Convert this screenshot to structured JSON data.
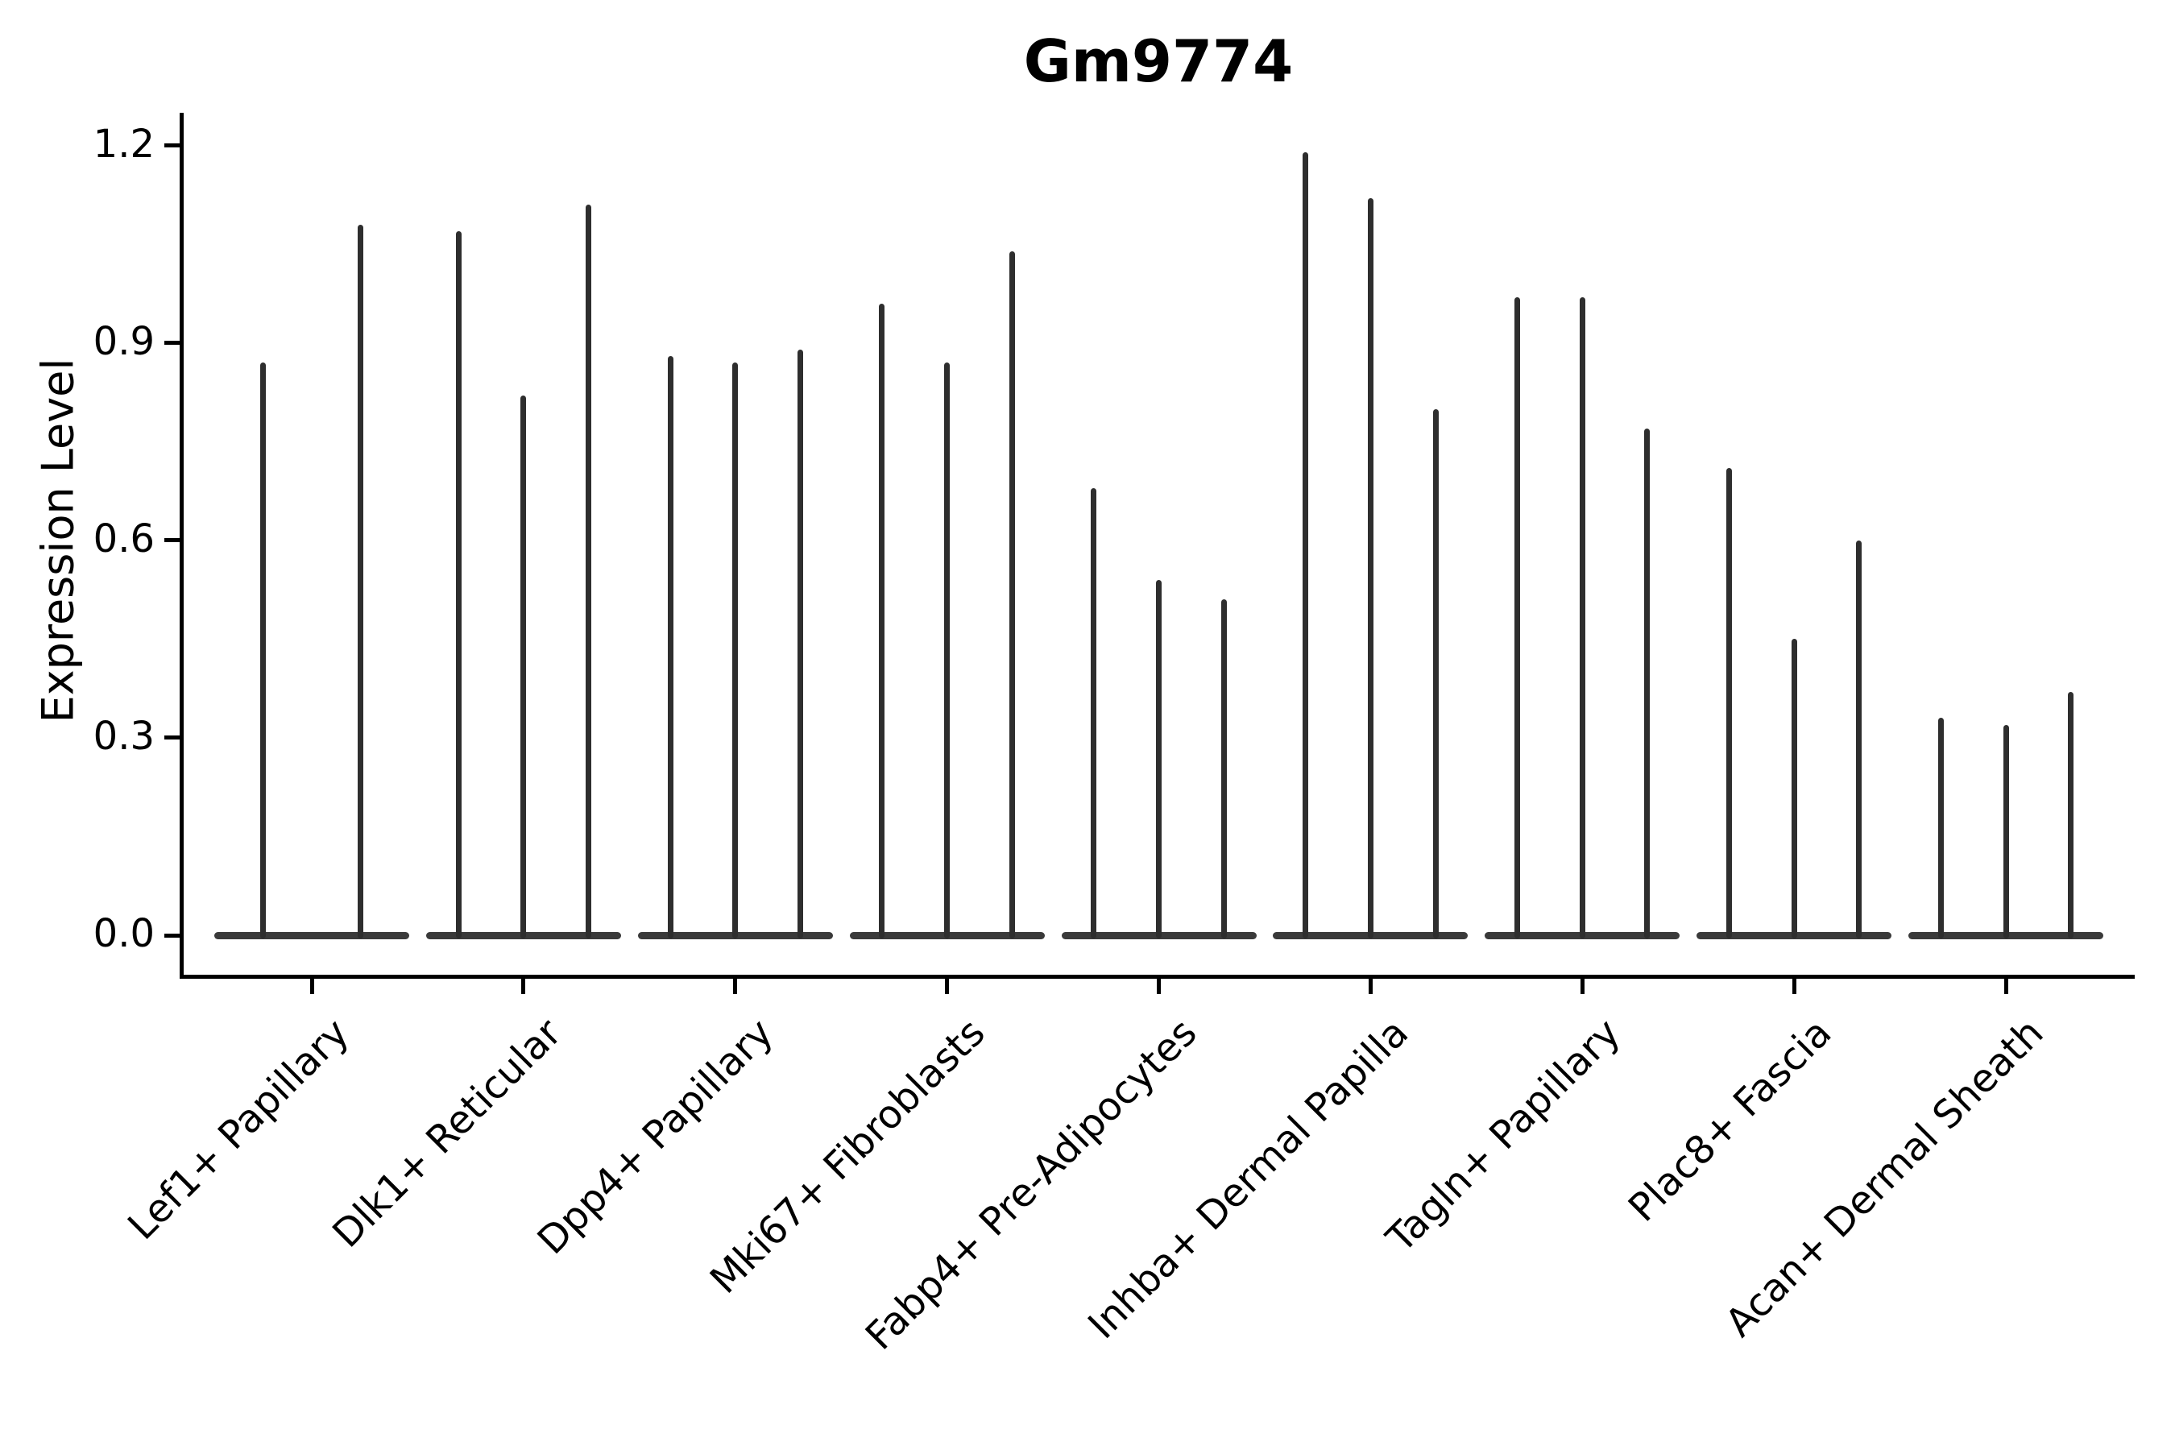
{
  "title": "Gm9774",
  "y_axis": {
    "label": "Expression Level",
    "tick_labels": [
      "0.0",
      "0.3",
      "0.6",
      "0.9",
      "1.2"
    ]
  },
  "x_axis": {
    "tick_labels": [
      "Lef1+ Papillary",
      "Dlk1+ Reticular",
      "Dpp4+ Papillary",
      "Mki67+ Fibroblasts",
      "Fabp4+ Pre-Adipocytes",
      "Inhba+ Dermal Papilla",
      "Tagln+ Papillary",
      "Plac8+ Fascia",
      "Acan+ Dermal Sheath"
    ]
  },
  "colors": {
    "violin": "#2e2e2e",
    "violin_base": "#3a3a3a",
    "axis": "#000000",
    "text": "#000000",
    "background": "#ffffff"
  },
  "chart_data": {
    "type": "violin",
    "title": "Gm9774",
    "xlabel": "",
    "ylabel": "Expression Level",
    "ylim": [
      -0.06,
      1.25
    ],
    "yticks": [
      0.0,
      0.3,
      0.6,
      0.9,
      1.2
    ],
    "grid": false,
    "legend_position": "none",
    "categories": [
      "Lef1+ Papillary",
      "Dlk1+ Reticular",
      "Dpp4+ Papillary",
      "Mki67+ Fibroblasts",
      "Fabp4+ Pre-Adipocytes",
      "Inhba+ Dermal Papilla",
      "Tagln+ Papillary",
      "Plac8+ Fascia",
      "Acan+ Dermal Sheath"
    ],
    "series": [
      {
        "category": "Lef1+ Papillary",
        "violin_max_values": [
          0.87,
          1.08
        ]
      },
      {
        "category": "Dlk1+ Reticular",
        "violin_max_values": [
          1.07,
          0.82,
          1.11
        ]
      },
      {
        "category": "Dpp4+ Papillary",
        "violin_max_values": [
          0.88,
          0.87,
          0.89
        ]
      },
      {
        "category": "Mki67+ Fibroblasts",
        "violin_max_values": [
          0.96,
          0.87,
          1.04
        ]
      },
      {
        "category": "Fabp4+ Pre-Adipocytes",
        "violin_max_values": [
          0.68,
          0.54,
          0.51
        ]
      },
      {
        "category": "Inhba+ Dermal Papilla",
        "violin_max_values": [
          1.19,
          1.12,
          0.8
        ]
      },
      {
        "category": "Tagln+ Papillary",
        "violin_max_values": [
          0.97,
          0.97,
          0.77
        ]
      },
      {
        "category": "Plac8+ Fascia",
        "violin_max_values": [
          0.71,
          0.45,
          0.6
        ]
      },
      {
        "category": "Acan+ Dermal Sheath",
        "violin_max_values": [
          0.33,
          0.32,
          0.37
        ]
      }
    ],
    "note": "Each violin is flat at expression 0 with a thin spike reaching its maximum expression value."
  }
}
